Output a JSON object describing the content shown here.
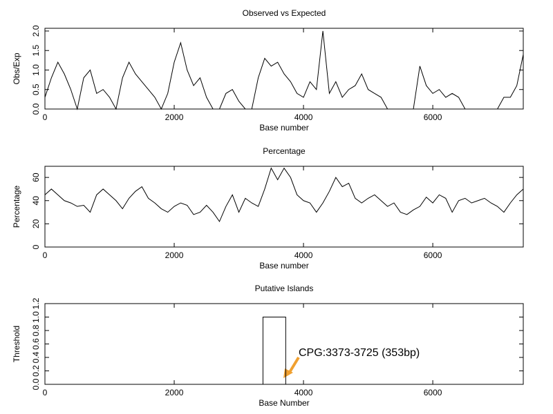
{
  "chart_data": [
    {
      "type": "line",
      "title": "Observed vs Expected",
      "xlabel": "Base number",
      "ylabel": "Obs/Exp",
      "x": [
        0,
        100,
        200,
        300,
        400,
        500,
        600,
        700,
        800,
        900,
        1000,
        1100,
        1200,
        1300,
        1400,
        1500,
        1600,
        1700,
        1800,
        1900,
        2000,
        2100,
        2200,
        2300,
        2400,
        2500,
        2600,
        2700,
        2800,
        2900,
        3000,
        3100,
        3200,
        3300,
        3400,
        3500,
        3600,
        3700,
        3800,
        3900,
        4000,
        4100,
        4200,
        4300,
        4400,
        4500,
        4600,
        4700,
        4800,
        4900,
        5000,
        5100,
        5200,
        5300,
        5400,
        5500,
        5600,
        5700,
        5800,
        5900,
        6000,
        6100,
        6200,
        6300,
        6400,
        6500,
        6600,
        6700,
        6800,
        6900,
        7000,
        7100,
        7200,
        7300,
        7400
      ],
      "values": [
        0.3,
        0.8,
        1.2,
        0.9,
        0.5,
        0,
        0.8,
        1.0,
        0.4,
        0.5,
        0.3,
        0,
        0.8,
        1.2,
        0.9,
        0.7,
        0.5,
        0.3,
        0,
        0.4,
        1.2,
        1.7,
        1.0,
        0.6,
        0.8,
        0.3,
        0,
        0,
        0.4,
        0.5,
        0.2,
        0,
        0,
        0.8,
        1.3,
        1.1,
        1.2,
        0.9,
        0.7,
        0.4,
        0.3,
        0.7,
        0.5,
        2.0,
        0.4,
        0.7,
        0.3,
        0.5,
        0.6,
        0.9,
        0.5,
        0.4,
        0.3,
        0,
        0,
        0,
        0,
        0,
        1.1,
        0.6,
        0.4,
        0.5,
        0.3,
        0.4,
        0.3,
        0,
        0,
        0,
        0,
        0,
        0,
        0.3,
        0.3,
        0.6,
        1.4
      ],
      "color": "#000000",
      "xlim": [
        0,
        7400
      ],
      "ylim": [
        0,
        2.07
      ],
      "xticks": [
        0,
        2000,
        4000,
        6000
      ],
      "yticks": [
        {
          "value": 0,
          "label": "0.0"
        },
        0.5,
        {
          "value": 1,
          "label": "1.0"
        },
        1.5,
        {
          "value": 2,
          "label": "2.0"
        }
      ]
    },
    {
      "type": "line",
      "title": "Percentage",
      "xlabel": "Base number",
      "ylabel": "Percentage",
      "x": [
        0,
        100,
        200,
        300,
        400,
        500,
        600,
        700,
        800,
        900,
        1000,
        1100,
        1200,
        1300,
        1400,
        1500,
        1600,
        1700,
        1800,
        1900,
        2000,
        2100,
        2200,
        2300,
        2400,
        2500,
        2600,
        2700,
        2800,
        2900,
        3000,
        3100,
        3200,
        3300,
        3400,
        3500,
        3600,
        3700,
        3800,
        3900,
        4000,
        4100,
        4200,
        4300,
        4400,
        4500,
        4600,
        4700,
        4800,
        4900,
        5000,
        5100,
        5200,
        5300,
        5400,
        5500,
        5600,
        5700,
        5800,
        5900,
        6000,
        6100,
        6200,
        6300,
        6400,
        6500,
        6600,
        6700,
        6800,
        6900,
        7000,
        7100,
        7200,
        7300,
        7400
      ],
      "values": [
        45,
        50,
        45,
        40,
        38,
        35,
        36,
        30,
        45,
        50,
        45,
        40,
        33,
        42,
        48,
        52,
        42,
        38,
        33,
        30,
        35,
        38,
        36,
        28,
        30,
        36,
        30,
        22,
        35,
        45,
        30,
        42,
        38,
        35,
        50,
        68,
        58,
        68,
        60,
        45,
        40,
        38,
        30,
        38,
        48,
        60,
        52,
        55,
        42,
        38,
        42,
        45,
        40,
        35,
        38,
        30,
        28,
        32,
        35,
        43,
        38,
        45,
        42,
        30,
        40,
        42,
        38,
        40,
        42,
        38,
        35,
        30,
        38,
        45,
        50
      ],
      "color": "#000000",
      "xlim": [
        0,
        7400
      ],
      "ylim": [
        0,
        69.6
      ],
      "xticks": [
        0,
        2000,
        4000,
        6000
      ],
      "yticks": [
        0,
        20,
        40,
        60
      ]
    },
    {
      "type": "island",
      "title": "Putative Islands",
      "xlabel": "Base Number",
      "ylabel": "Threshold",
      "islands": [
        {
          "start": 3373,
          "end": 3725,
          "value": 1
        }
      ],
      "annotation": "CPG:3373-3725 (353bp)",
      "color": "#000000",
      "annotation_color": "#4a90e2",
      "xlim": [
        0,
        7400
      ],
      "ylim": [
        0,
        1.2
      ],
      "xticks": [
        0,
        2000,
        4000,
        6000
      ],
      "yticks": [
        {
          "value": 0,
          "label": "0.0"
        },
        0.2,
        0.4,
        0.6,
        0.8,
        {
          "value": 1,
          "label": "1.0"
        },
        1.2
      ]
    }
  ]
}
